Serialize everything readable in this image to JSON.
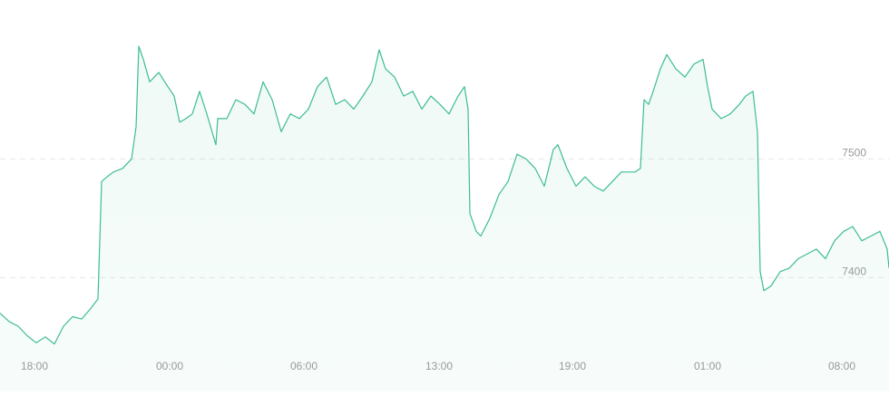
{
  "chart_data": {
    "type": "line",
    "x": [
      0,
      10,
      20,
      30,
      40,
      50,
      60,
      70,
      80,
      90,
      100,
      108,
      112,
      118,
      125,
      135,
      145,
      150,
      153,
      158,
      165,
      175,
      185,
      192,
      198,
      205,
      212,
      220,
      228,
      238,
      240,
      250,
      260,
      270,
      280,
      290,
      300,
      310,
      320,
      330,
      340,
      350,
      360,
      370,
      380,
      390,
      400,
      410,
      418,
      425,
      435,
      445,
      455,
      465,
      475,
      485,
      495,
      505,
      512,
      516,
      518,
      525,
      530,
      540,
      550,
      560,
      570,
      580,
      590,
      600,
      610,
      615,
      625,
      635,
      645,
      655,
      665,
      675,
      685,
      700,
      706,
      710,
      715,
      720,
      728,
      735,
      745,
      755,
      765,
      775,
      780,
      785,
      795,
      805,
      815,
      822,
      830,
      835,
      838,
      842,
      850,
      860,
      870,
      880,
      890,
      900,
      910,
      920,
      930,
      940,
      950,
      960,
      970,
      978,
      980
    ],
    "series": [
      {
        "color": "#3dbd91",
        "values": [
          7370,
          7363,
          7359,
          7351,
          7345,
          7350,
          7344,
          7359,
          7367,
          7365,
          7374,
          7382,
          7481,
          7485,
          7489,
          7492,
          7500,
          7527,
          7595,
          7584,
          7565,
          7573,
          7561,
          7553,
          7531,
          7534,
          7538,
          7557,
          7538,
          7512,
          7534,
          7534,
          7550,
          7546,
          7538,
          7565,
          7550,
          7523,
          7538,
          7534,
          7542,
          7561,
          7569,
          7546,
          7550,
          7542,
          7553,
          7565,
          7592,
          7576,
          7569,
          7553,
          7557,
          7542,
          7553,
          7546,
          7538,
          7553,
          7561,
          7542,
          7454,
          7439,
          7435,
          7450,
          7470,
          7481,
          7504,
          7500,
          7492,
          7477,
          7508,
          7512,
          7492,
          7477,
          7485,
          7477,
          7473,
          7481,
          7489,
          7489,
          7492,
          7550,
          7546,
          7557,
          7576,
          7588,
          7576,
          7569,
          7580,
          7584,
          7561,
          7542,
          7534,
          7538,
          7546,
          7553,
          7557,
          7523,
          7405,
          7389,
          7393,
          7405,
          7408,
          7416,
          7420,
          7424,
          7416,
          7431,
          7439,
          7443,
          7431,
          7435,
          7439,
          7424,
          7408
        ]
      }
    ],
    "xlim": [
      0,
      980
    ],
    "xticks": [
      {
        "value": 38,
        "label": "18:00"
      },
      {
        "value": 187,
        "label": "00:00"
      },
      {
        "value": 335,
        "label": "06:00"
      },
      {
        "value": 484,
        "label": "13:00"
      },
      {
        "value": 631,
        "label": "19:00"
      },
      {
        "value": 780,
        "label": "01:00"
      },
      {
        "value": 928,
        "label": "08:00"
      }
    ],
    "ylim": [
      7304,
      7634
    ],
    "yticks": [
      7400,
      7500
    ],
    "grid": true
  }
}
